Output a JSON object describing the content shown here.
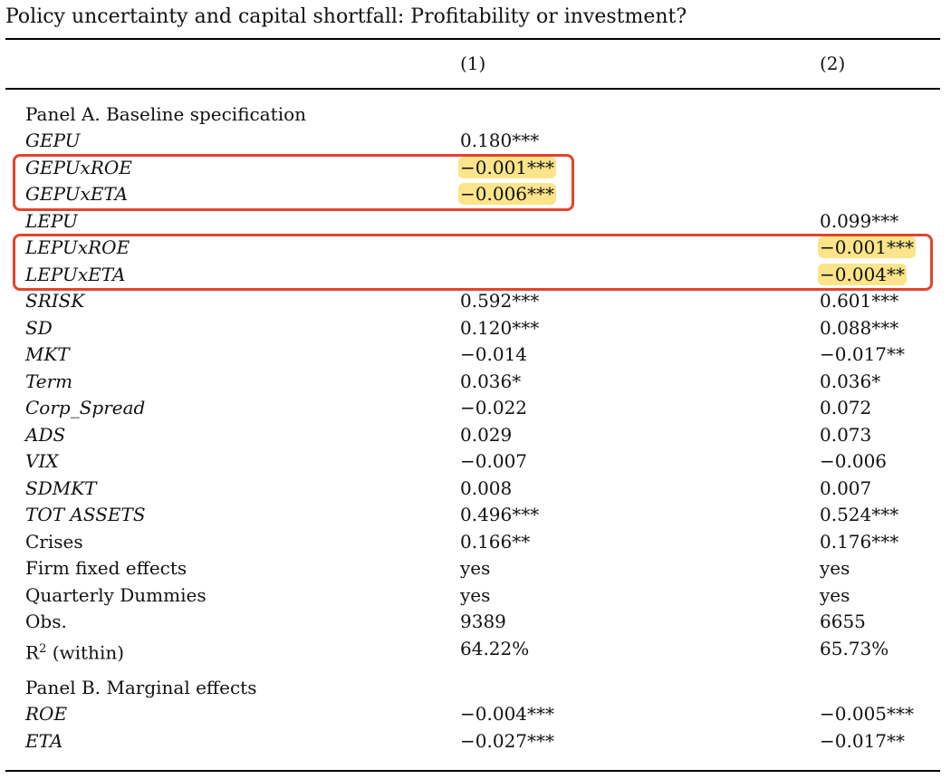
{
  "title": "Policy uncertainty and capital shortfall: Profitability or investment?",
  "columns": [
    "(1)",
    "(2)"
  ],
  "panel_a": {
    "heading": "Panel A. Baseline specification",
    "rows": [
      {
        "label": "GEPU",
        "italic": true,
        "v1": "0.180***",
        "v2": "",
        "hl1": false,
        "hl2": false
      },
      {
        "label": "GEPUxROE",
        "italic": true,
        "v1": "−0.001***",
        "v2": "",
        "hl1": true,
        "hl2": false
      },
      {
        "label": "GEPUxETA",
        "italic": true,
        "v1": "−0.006***",
        "v2": "",
        "hl1": true,
        "hl2": false
      },
      {
        "label": "LEPU",
        "italic": true,
        "v1": "",
        "v2": "0.099***",
        "hl1": false,
        "hl2": false
      },
      {
        "label": "LEPUxROE",
        "italic": true,
        "v1": "",
        "v2": "−0.001***",
        "hl1": false,
        "hl2": true
      },
      {
        "label": "LEPUxETA",
        "italic": true,
        "v1": "",
        "v2": "−0.004**",
        "hl1": false,
        "hl2": true
      },
      {
        "label": "SRISK",
        "italic": true,
        "v1": "0.592***",
        "v2": "0.601***",
        "hl1": false,
        "hl2": false
      },
      {
        "label": "SD",
        "italic": true,
        "v1": "0.120***",
        "v2": "0.088***",
        "hl1": false,
        "hl2": false
      },
      {
        "label": "MKT",
        "italic": true,
        "v1": "−0.014",
        "v2": "−0.017**",
        "hl1": false,
        "hl2": false
      },
      {
        "label": "Term",
        "italic": true,
        "v1": "0.036*",
        "v2": "0.036*",
        "hl1": false,
        "hl2": false
      },
      {
        "label": "Corp_Spread",
        "italic": true,
        "v1": "−0.022",
        "v2": "0.072",
        "hl1": false,
        "hl2": false
      },
      {
        "label": "ADS",
        "italic": true,
        "v1": "0.029",
        "v2": "0.073",
        "hl1": false,
        "hl2": false
      },
      {
        "label": "VIX",
        "italic": true,
        "v1": "−0.007",
        "v2": "−0.006",
        "hl1": false,
        "hl2": false
      },
      {
        "label": "SDMKT",
        "italic": true,
        "v1": "0.008",
        "v2": "0.007",
        "hl1": false,
        "hl2": false
      },
      {
        "label": "TOT ASSETS",
        "italic": true,
        "v1": "0.496***",
        "v2": "0.524***",
        "hl1": false,
        "hl2": false
      },
      {
        "label": "Crises",
        "italic": false,
        "v1": "0.166**",
        "v2": "0.176***",
        "hl1": false,
        "hl2": false
      },
      {
        "label": "Firm fixed effects",
        "italic": false,
        "v1": "yes",
        "v2": "yes",
        "hl1": false,
        "hl2": false
      },
      {
        "label": "Quarterly Dummies",
        "italic": false,
        "v1": "yes",
        "v2": "yes",
        "hl1": false,
        "hl2": false
      },
      {
        "label": "Obs.",
        "italic": false,
        "v1": "9389",
        "v2": "6655",
        "hl1": false,
        "hl2": false
      },
      {
        "label": "R",
        "sup": "2",
        "suffix": " (within)",
        "italic": false,
        "v1": "64.22%",
        "v2": "65.73%",
        "hl1": false,
        "hl2": false
      }
    ]
  },
  "panel_b": {
    "heading": "Panel B. Marginal effects",
    "rows": [
      {
        "label": "ROE",
        "italic": true,
        "v1": "−0.004***",
        "v2": "−0.005***",
        "hl1": false,
        "hl2": false
      },
      {
        "label": "ETA",
        "italic": true,
        "v1": "−0.027***",
        "v2": "−0.017**",
        "hl1": false,
        "hl2": false
      }
    ]
  }
}
